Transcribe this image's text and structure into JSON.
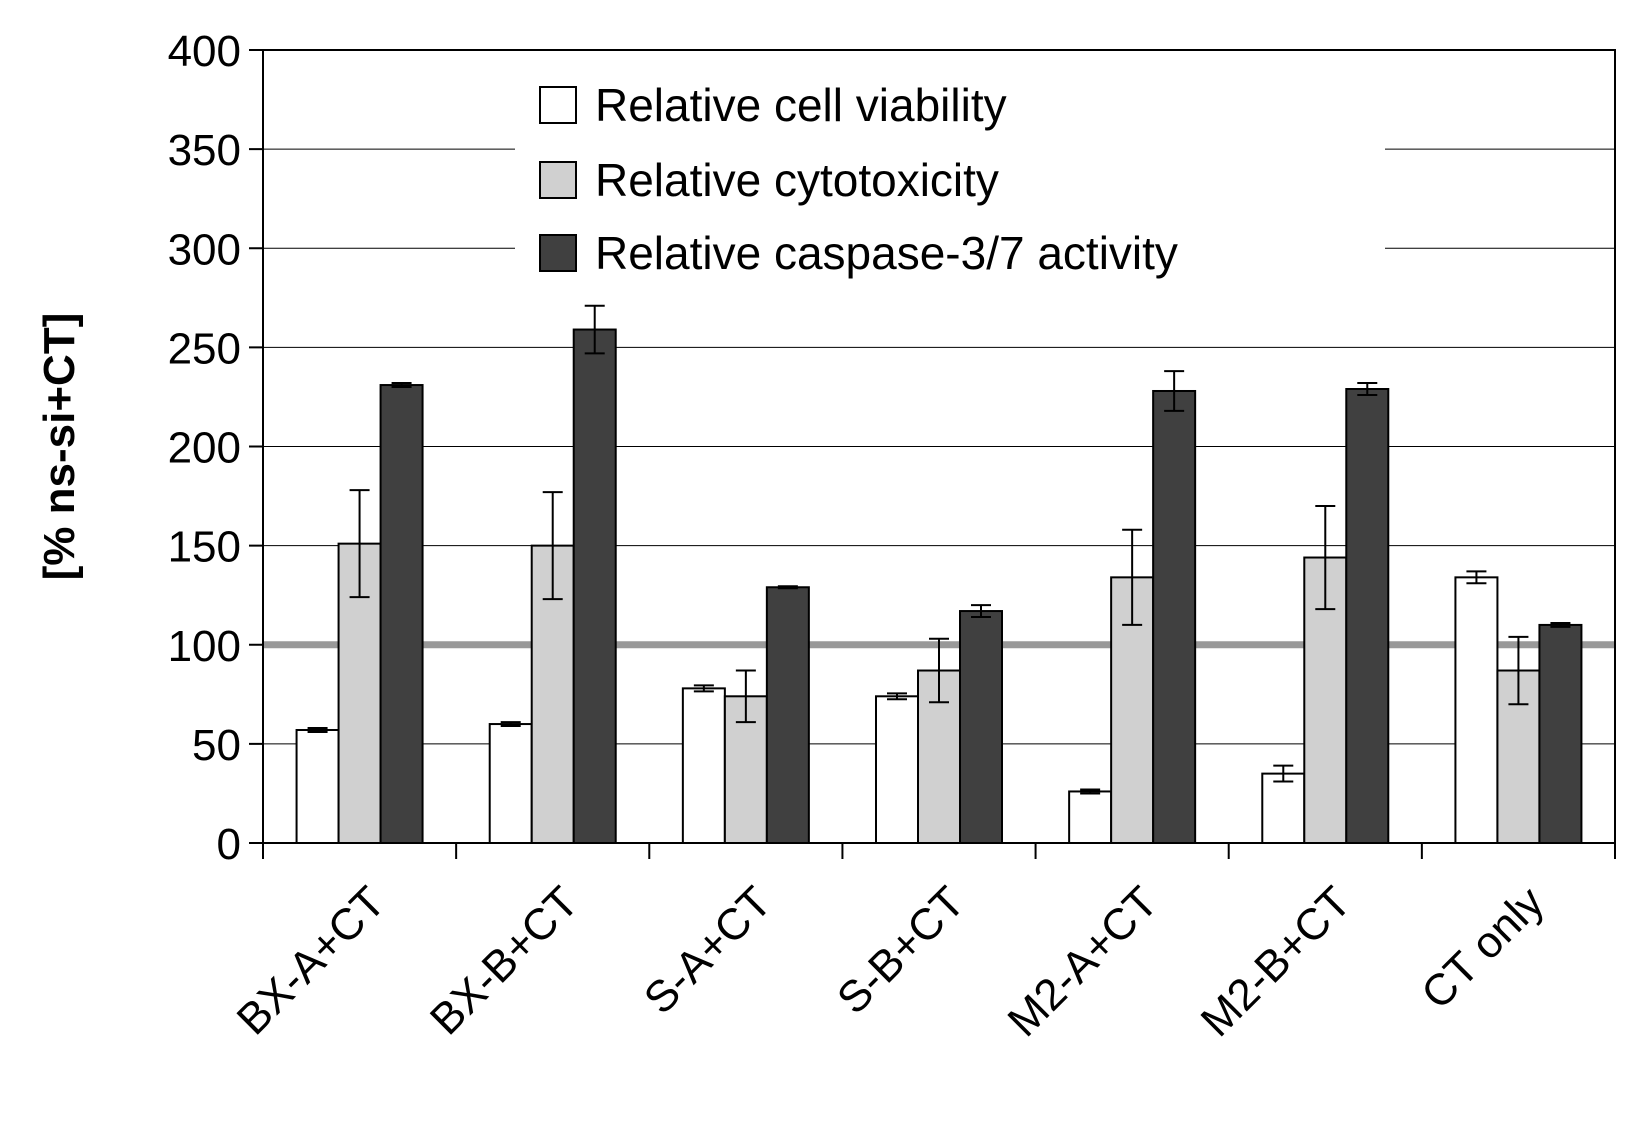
{
  "chart_data": {
    "type": "bar",
    "ylabel": "[% ns-si+CT]",
    "xlabel": "",
    "ylim": [
      0,
      400
    ],
    "yticks": [
      "0",
      "50",
      "100",
      "150",
      "200",
      "250",
      "300",
      "350",
      "400"
    ],
    "categories": [
      "BX-A+CT",
      "BX-B+CT",
      "S-A+CT",
      "S-B+CT",
      "M2-A+CT",
      "M2-B+CT",
      "CT only"
    ],
    "reference_line": 100,
    "legend_position": "top-center",
    "series": [
      {
        "name": "Relative cell viability",
        "color": "#ffffff",
        "values": [
          57,
          60,
          78,
          74,
          26,
          35,
          134
        ],
        "errors": [
          1,
          1,
          1.5,
          1.5,
          1,
          4,
          3
        ]
      },
      {
        "name": "Relative cytotoxicity",
        "color": "#d0d0d0",
        "values": [
          151,
          150,
          74,
          87,
          134,
          144,
          87
        ],
        "errors": [
          27,
          27,
          13,
          16,
          24,
          26,
          17
        ]
      },
      {
        "name": "Relative caspase-3/7 activity",
        "color": "#404040",
        "values": [
          231,
          259,
          129,
          117,
          228,
          229,
          110
        ],
        "errors": [
          1,
          12,
          0.5,
          3,
          10,
          3,
          1
        ]
      }
    ]
  }
}
